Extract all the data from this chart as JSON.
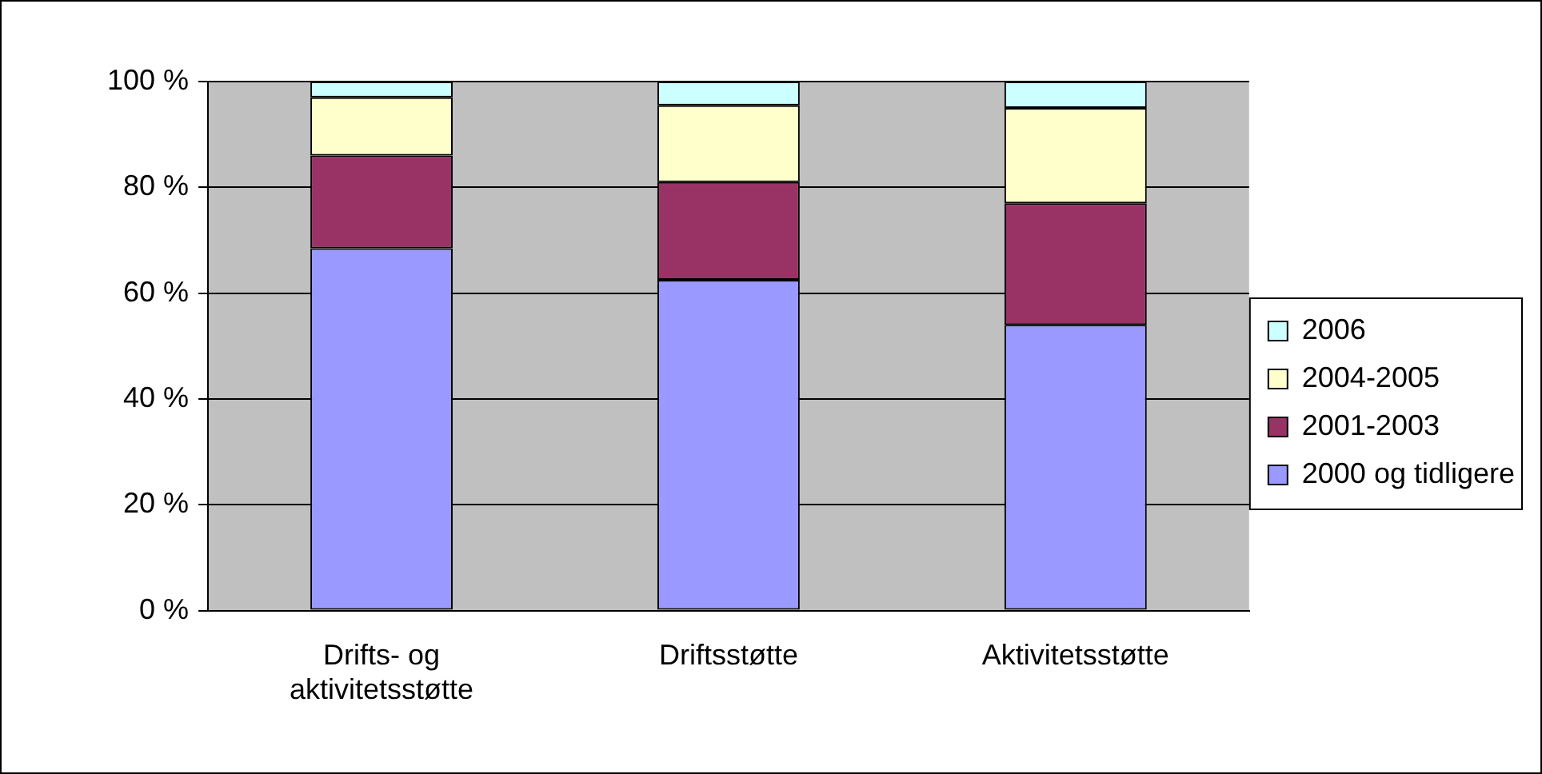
{
  "chart_data": {
    "type": "bar",
    "stacked": true,
    "categories": [
      "Drifts- og aktivitetsstøtte",
      "Driftsstøtte",
      "Aktivitetsstøtte"
    ],
    "series": [
      {
        "name": "2000 og tidligere",
        "color": "#9999ff",
        "values": [
          68.5,
          62.5,
          54
        ]
      },
      {
        "name": "2001-2003",
        "color": "#993366",
        "values": [
          17.5,
          18.5,
          23
        ]
      },
      {
        "name": "2004-2005",
        "color": "#ffffcc",
        "values": [
          11,
          14.5,
          18
        ]
      },
      {
        "name": "2006",
        "color": "#ccffff",
        "values": [
          3,
          4.5,
          5
        ]
      }
    ],
    "ylim": [
      0,
      100
    ],
    "yticks": [
      {
        "value": 0,
        "label": "0 %"
      },
      {
        "value": 20,
        "label": "20 %"
      },
      {
        "value": 40,
        "label": "40 %"
      },
      {
        "value": 60,
        "label": "60 %"
      },
      {
        "value": 80,
        "label": "80 %"
      },
      {
        "value": 100,
        "label": "100 %"
      }
    ],
    "grid": "y",
    "legend": "right"
  }
}
